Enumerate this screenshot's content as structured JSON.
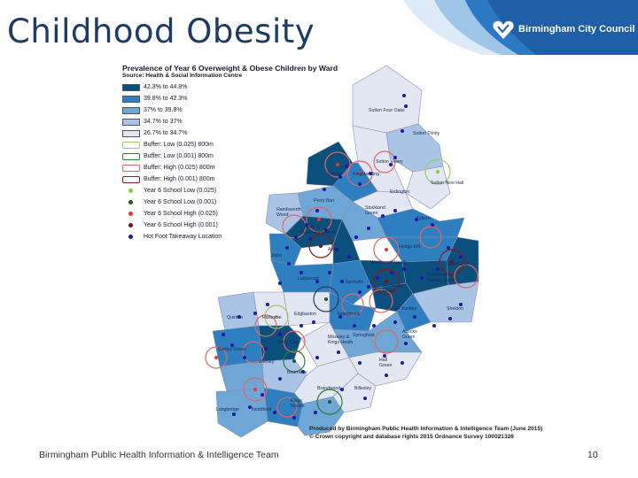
{
  "slide": {
    "title": "Childhood Obesity",
    "footer": "Birmingham Public Health Information & Intelligence Team",
    "page_number": "10"
  },
  "header": {
    "logo_text": "Birmingham City Council",
    "logo_icon": "bcc-logo-icon"
  },
  "map": {
    "title": "Prevalence of Year 6 Overweight & Obese Children by Ward",
    "source": "Source: Health & Social Information Centre",
    "legend": {
      "prevalence_classes": [
        {
          "label": "42.3% to 44.8%",
          "color": "#0b4f7c"
        },
        {
          "label": "39.8% to 42.3%",
          "color": "#2e7fbf"
        },
        {
          "label": "37% to 39.8%",
          "color": "#6ea6d6"
        },
        {
          "label": "34.7% to 37%",
          "color": "#a9c4e4"
        },
        {
          "label": "26.7% to 34.7%",
          "color": "#e3e6f3"
        }
      ],
      "buffers": [
        {
          "label": "Buffer: Low (0.025) 800m",
          "color": "#9acd68"
        },
        {
          "label": "Buffer: Low (0.001) 800m",
          "color": "#2f7d32"
        },
        {
          "label": "Buffer: High (0.025) 800m",
          "color": "#e06666"
        },
        {
          "label": "Buffer: High (0.001) 800m",
          "color": "#8b1a1a"
        }
      ],
      "points": [
        {
          "label": "Year 6 School Low (0.025)",
          "color": "#8bc34a"
        },
        {
          "label": "Year 6 School Low (0.001)",
          "color": "#1b5e20"
        },
        {
          "label": "Year 6 School High (0.025)",
          "color": "#e53935"
        },
        {
          "label": "Year 6 School High (0.001)",
          "color": "#7b1010"
        },
        {
          "label": "Hot Foot Takeaway Location",
          "color": "#1a1aa6"
        }
      ]
    },
    "wards": {
      "sutton_four_oaks": "Sutton Four Oaks",
      "sutton_trinity": "Sutton Trinity",
      "sutton_vesey": "Sutton Vesey",
      "sutton_new_hall": "Sutton New Hall",
      "oscott": "Oscott",
      "kingstanding": "Kingstanding",
      "erdington": "Erdington",
      "perry_barr": "Perry Barr",
      "handsworth_wood": "Handsworth\nWood",
      "stockland_green": "Stockland\nGreen",
      "tyburn": "Tyburn",
      "lozells": "Lozells &\nEast Handsworth",
      "aston": "Aston",
      "soho": "Soho",
      "hodge_hill": "Hodge Hill",
      "washwood_heath": "Washwood Heath",
      "shard_end": "Shard End",
      "stechford": "Stechford &\nYardley North",
      "ladywood": "Ladywood",
      "nechells": "Nechells",
      "bordesley_green": "Bordesley\nGreen",
      "quinton": "Quinton",
      "harborne": "Harborne",
      "edgbaston": "Edgbaston",
      "sparkbrook": "Sparkbrook",
      "south_yardley": "South Yardley",
      "sheldon": "Sheldon",
      "bartley_green": "Bartley Green",
      "selly_oak": "Selly Oak",
      "moseley": "Moseley &\nKings Heath",
      "springfield": "Springfield",
      "acocks_green": "Acocks\nGreen",
      "weoley": "Weoley",
      "bournville": "Bournville",
      "hall_green": "Hall\nGreen",
      "brandwood": "Brandwood",
      "billesley": "Billesley",
      "longbridge": "Longbridge",
      "northfield": "Northfield",
      "kings_norton": "Kings\nNorton"
    },
    "credits": [
      "Produced by Birmingham Public Health Information & Intelligence Team (June 2015)",
      "© Crown copyright and database rights 2015 Ordnance Survey 100021326"
    ]
  }
}
